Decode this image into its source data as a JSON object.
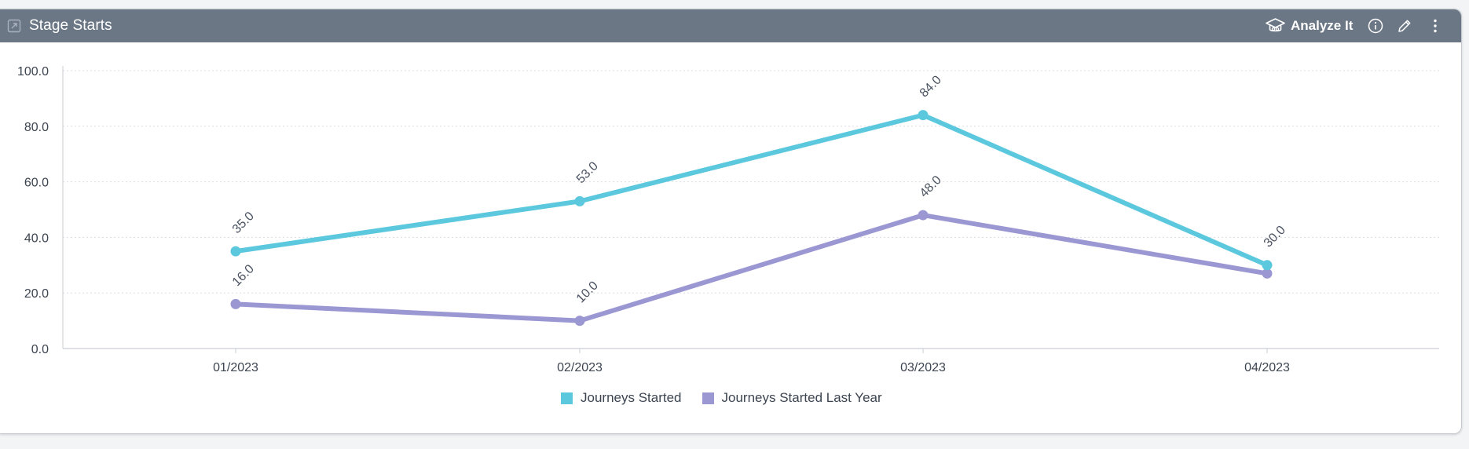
{
  "widget": {
    "title": "Stage Starts",
    "analyze_label": "Analyze It",
    "icons": {
      "header": "expand-icon",
      "analyze": "graduation-cap-icon",
      "info": "info-icon",
      "edit": "pencil-icon",
      "menu": "more-vertical-icon"
    }
  },
  "colors": {
    "header_bg": "#6b7785",
    "series_current": "#5bc8de",
    "series_last_year": "#9b97d2"
  },
  "chart_data": {
    "type": "line",
    "categories": [
      "01/2023",
      "02/2023",
      "03/2023",
      "04/2023"
    ],
    "series": [
      {
        "name": "Journeys Started",
        "values": [
          35.0,
          53.0,
          84.0,
          30.0
        ],
        "labels": [
          "35.0",
          "53.0",
          "84.0",
          "30.0"
        ]
      },
      {
        "name": "Journeys Started Last Year",
        "values": [
          16.0,
          10.0,
          48.0,
          27.0
        ],
        "labels": [
          "16.0",
          "10.0",
          "48.0",
          ""
        ]
      }
    ],
    "yticks": [
      "0.0",
      "20.0",
      "40.0",
      "60.0",
      "80.0",
      "100.0"
    ],
    "ylim": [
      0,
      100
    ],
    "grid": true,
    "legend": "bottom-center",
    "xlabel": "",
    "ylabel": ""
  }
}
